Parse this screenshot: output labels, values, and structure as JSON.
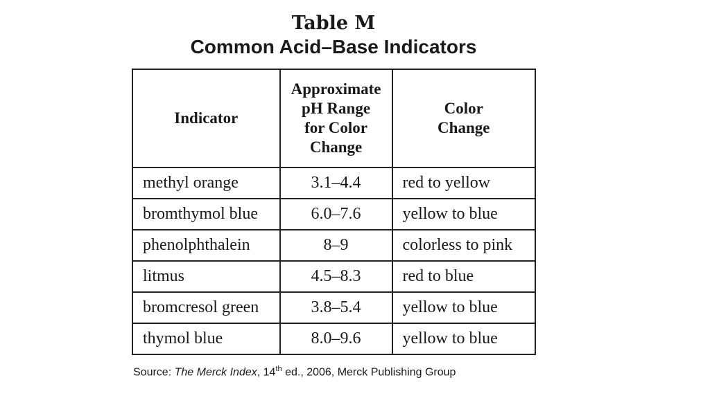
{
  "header": {
    "title": "Table M",
    "subtitle": "Common Acid–Base Indicators"
  },
  "table": {
    "columns": [
      [
        "Indicator"
      ],
      [
        "Approximate",
        "pH Range",
        "for Color",
        "Change"
      ],
      [
        "Color",
        "Change"
      ]
    ],
    "rows": [
      [
        "methyl orange",
        "3.1–4.4",
        "red to yellow"
      ],
      [
        "bromthymol blue",
        "6.0–7.6",
        "yellow to blue"
      ],
      [
        "phenolphthalein",
        "8–9",
        "colorless to pink"
      ],
      [
        "litmus",
        "4.5–8.3",
        "red to blue"
      ],
      [
        "bromcresol green",
        "3.8–5.4",
        "yellow to blue"
      ],
      [
        "thymol blue",
        "8.0–9.6",
        "yellow to blue"
      ]
    ]
  },
  "source": {
    "prefix": "Source: ",
    "work": "The Merck Index",
    "edition": ", 14",
    "edition_suffix": "th",
    "details": " ed., 2006, Merck Publishing Group"
  }
}
